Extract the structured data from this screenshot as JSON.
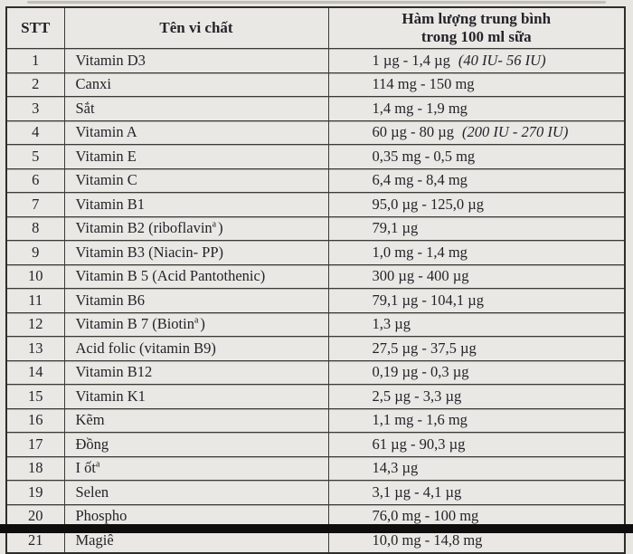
{
  "page": {
    "background_color": "#e8e6e1",
    "bottom_bar_color": "#0e0e0e",
    "line_color": "#3a3a36",
    "text_color": "#23232a"
  },
  "table": {
    "header": {
      "stt": "STT",
      "name": "Tên vi chất",
      "amount_line1": "Hàm lượng trung bình",
      "amount_line2": "trong 100 ml sữa"
    },
    "rows": [
      {
        "stt": "1",
        "name": "Vitamin D3",
        "name_sup": "",
        "name_suffix": "",
        "value": "1 µg - 1,4 µg",
        "value_note": "(40 IU- 56 IU)"
      },
      {
        "stt": "2",
        "name": "Canxi",
        "name_sup": "",
        "name_suffix": "",
        "value": "114 mg - 150 mg",
        "value_note": ""
      },
      {
        "stt": "3",
        "name": "Sắt",
        "name_sup": "",
        "name_suffix": "",
        "value": "1,4 mg - 1,9 mg",
        "value_note": ""
      },
      {
        "stt": "4",
        "name": "Vitamin A",
        "name_sup": "",
        "name_suffix": "",
        "value": "60 µg - 80 µg",
        "value_note": "(200 IU - 270 IU)"
      },
      {
        "stt": "5",
        "name": "Vitamin E",
        "name_sup": "",
        "name_suffix": "",
        "value": "0,35 mg - 0,5 mg",
        "value_note": ""
      },
      {
        "stt": "6",
        "name": "Vitamin C",
        "name_sup": "",
        "name_suffix": "",
        "value": "6,4 mg - 8,4 mg",
        "value_note": ""
      },
      {
        "stt": "7",
        "name": "Vitamin B1",
        "name_sup": "",
        "name_suffix": "",
        "value": "95,0 µg - 125,0 µg",
        "value_note": ""
      },
      {
        "stt": "8",
        "name": "Vitamin B2 (riboflavin",
        "name_sup": "a",
        "name_suffix": ")",
        "value": "79,1 µg",
        "value_note": ""
      },
      {
        "stt": "9",
        "name": "Vitamin B3 (Niacin- PP)",
        "name_sup": "",
        "name_suffix": "",
        "value": "1,0 mg - 1,4 mg",
        "value_note": ""
      },
      {
        "stt": "10",
        "name": "Vitamin B 5 (Acid Pantothenic)",
        "name_sup": "",
        "name_suffix": "",
        "value": "300 µg - 400 µg",
        "value_note": ""
      },
      {
        "stt": "11",
        "name": "Vitamin B6",
        "name_sup": "",
        "name_suffix": "",
        "value": "79,1 µg - 104,1 µg",
        "value_note": ""
      },
      {
        "stt": "12",
        "name": "Vitamin B 7 (Biotin",
        "name_sup": "a",
        "name_suffix": ")",
        "value": "1,3 µg",
        "value_note": ""
      },
      {
        "stt": "13",
        "name": "Acid folic (vitamin B9)",
        "name_sup": "",
        "name_suffix": "",
        "value": "27,5 µg - 37,5 µg",
        "value_note": ""
      },
      {
        "stt": "14",
        "name": "Vitamin B12",
        "name_sup": "",
        "name_suffix": "",
        "value": "0,19 µg - 0,3 µg",
        "value_note": ""
      },
      {
        "stt": "15",
        "name": "Vitamin K1",
        "name_sup": "",
        "name_suffix": "",
        "value": "2,5 µg - 3,3 µg",
        "value_note": ""
      },
      {
        "stt": "16",
        "name": "Kẽm",
        "name_sup": "",
        "name_suffix": "",
        "value": "1,1 mg - 1,6 mg",
        "value_note": ""
      },
      {
        "stt": "17",
        "name": "Đồng",
        "name_sup": "",
        "name_suffix": "",
        "value": "61 µg - 90,3 µg",
        "value_note": ""
      },
      {
        "stt": "18",
        "name": "I ốt",
        "name_sup": "a",
        "name_suffix": "",
        "value": "14,3 µg",
        "value_note": ""
      },
      {
        "stt": "19",
        "name": "Selen",
        "name_sup": "",
        "name_suffix": "",
        "value": "3,1 µg - 4,1 µg",
        "value_note": ""
      },
      {
        "stt": "20",
        "name": "Phospho",
        "name_sup": "",
        "name_suffix": "",
        "value": "76,0 mg - 100 mg",
        "value_note": ""
      },
      {
        "stt": "21",
        "name": "Magiê",
        "name_sup": "",
        "name_suffix": "",
        "value": "10,0 mg - 14,8 mg",
        "value_note": ""
      }
    ]
  }
}
